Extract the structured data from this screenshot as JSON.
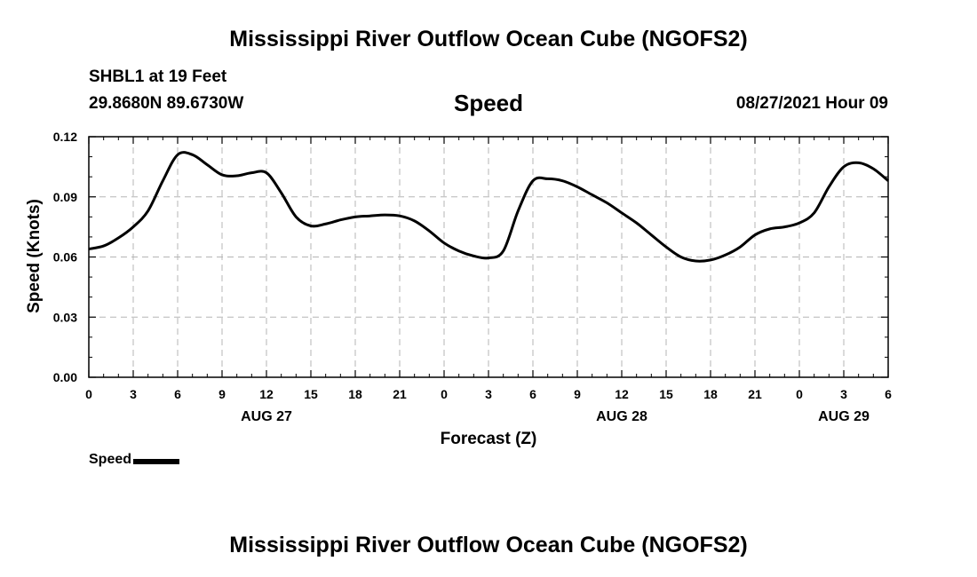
{
  "header": {
    "title": "Mississippi River Outflow Ocean Cube (NGOFS2)",
    "station": "SHBL1 at 19 Feet",
    "coordinates": "29.8680N  89.6730W",
    "datetime": "08/27/2021 Hour 09",
    "footer_title": "Mississippi River Outflow Ocean Cube (NGOFS2)"
  },
  "chart_data": {
    "type": "line",
    "title": "Speed",
    "xlabel": "Forecast (Z)",
    "ylabel": "Speed (Knots)",
    "xlim": [
      0,
      54
    ],
    "ylim": [
      0,
      0.12
    ],
    "x_tick_values": [
      0,
      3,
      6,
      9,
      12,
      15,
      18,
      21,
      24,
      27,
      30,
      33,
      36,
      39,
      42,
      45,
      48,
      51,
      54
    ],
    "x_tick_labels": [
      "0",
      "3",
      "6",
      "9",
      "12",
      "15",
      "18",
      "21",
      "0",
      "3",
      "6",
      "9",
      "12",
      "15",
      "18",
      "21",
      "0",
      "3",
      "6"
    ],
    "y_tick_values": [
      0,
      0.03,
      0.06,
      0.09,
      0.12
    ],
    "y_tick_labels": [
      "0.00",
      "0.03",
      "0.06",
      "0.09",
      "0.12"
    ],
    "date_labels": [
      {
        "x": 12,
        "label": "AUG 27"
      },
      {
        "x": 36,
        "label": "AUG 28"
      },
      {
        "x": 51,
        "label": "AUG 29"
      }
    ],
    "grid": true,
    "legend_position": "bottom-left",
    "series": [
      {
        "name": "Speed",
        "color": "#000000",
        "x": [
          0,
          1,
          2,
          3,
          4,
          5,
          6,
          7,
          8,
          9,
          10,
          11,
          12,
          13,
          14,
          15,
          16,
          17,
          18,
          19,
          20,
          21,
          22,
          23,
          24,
          25,
          26,
          27,
          28,
          29,
          30,
          31,
          32,
          33,
          34,
          35,
          36,
          37,
          38,
          39,
          40,
          41,
          42,
          43,
          44,
          45,
          46,
          47,
          48,
          49,
          50,
          51,
          52,
          53,
          54
        ],
        "y": [
          0.064,
          0.0655,
          0.0695,
          0.075,
          0.083,
          0.098,
          0.111,
          0.111,
          0.106,
          0.101,
          0.1005,
          0.102,
          0.102,
          0.092,
          0.08,
          0.0755,
          0.0765,
          0.0785,
          0.08,
          0.0805,
          0.081,
          0.0805,
          0.078,
          0.073,
          0.067,
          0.063,
          0.0605,
          0.0595,
          0.063,
          0.083,
          0.098,
          0.099,
          0.098,
          0.095,
          0.091,
          0.087,
          0.082,
          0.077,
          0.071,
          0.065,
          0.06,
          0.058,
          0.0585,
          0.061,
          0.065,
          0.071,
          0.074,
          0.075,
          0.077,
          0.082,
          0.095,
          0.105,
          0.107,
          0.104,
          0.098
        ]
      }
    ]
  }
}
